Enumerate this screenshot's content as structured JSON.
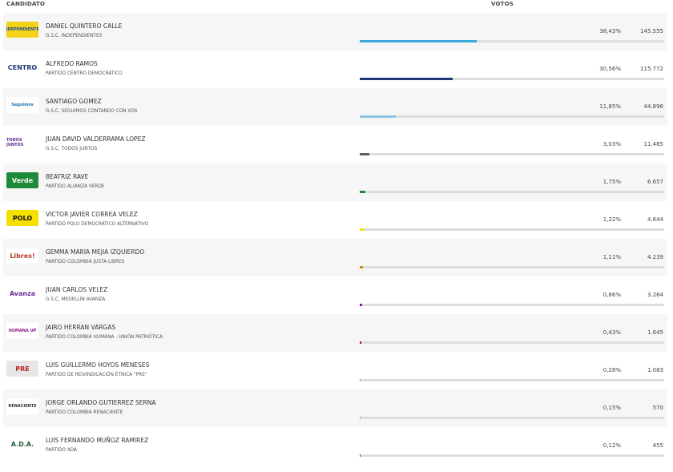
{
  "header": {
    "candidate": "CANDIDATO",
    "votes": "VOTOS"
  },
  "candidates": [
    {
      "name": "DANIEL QUINTERO CALLE",
      "party": "G.S.C. INDEPENDIENTES",
      "pct": "38,43%",
      "pct_value": 38.43,
      "votes": "145.555",
      "color": "#3aa8dc",
      "logo_text": "INDEPENDIENTES",
      "logo_bg": "#f3d21a",
      "logo_fg": "#1a4f9c",
      "logo_icon": "independientes-logo-icon"
    },
    {
      "name": "ALFREDO RAMOS",
      "party": "PARTIDO CENTRO DEMOCRÁTICO",
      "pct": "30,56%",
      "pct_value": 30.56,
      "votes": "115.772",
      "color": "#1e3a78",
      "logo_text": "CENTRO",
      "logo_bg": "#ffffff",
      "logo_fg": "#1e3a78",
      "logo_icon": "centro-democratico-logo-icon"
    },
    {
      "name": "SANTIAGO GOMEZ",
      "party": "G.S.C. SEGUIMOS CONTANDO CON VOS",
      "pct": "11,85%",
      "pct_value": 11.85,
      "votes": "44.896",
      "color": "#8cc3e3",
      "logo_text": "Seguimos",
      "logo_bg": "#ffffff",
      "logo_fg": "#1a6fb0",
      "logo_icon": "seguimos-logo-icon"
    },
    {
      "name": "JUAN DAVID VALDERRAMA LOPEZ",
      "party": "G.S.C. TODOS JUNTOS",
      "pct": "3,03%",
      "pct_value": 3.03,
      "votes": "11.485",
      "color": "#6b5a6b",
      "logo_text": "TODOS JUNTOS",
      "logo_bg": "#ffffff",
      "logo_fg": "#5b2a8a",
      "logo_icon": "todos-juntos-logo-icon"
    },
    {
      "name": "BEATRIZ RAVE",
      "party": "PARTIDO ALIANZA VERDE",
      "pct": "1,75%",
      "pct_value": 1.75,
      "votes": "6.657",
      "color": "#1f8a3a",
      "logo_text": "Verde",
      "logo_bg": "#1f8a3a",
      "logo_fg": "#ffffff",
      "logo_icon": "alianza-verde-logo-icon"
    },
    {
      "name": "VICTOR JAVIER CORREA VELEZ",
      "party": "PARTIDO POLO DEMOCRÁTICO ALTERNATIVO",
      "pct": "1,22%",
      "pct_value": 1.22,
      "votes": "4.644",
      "color": "#f2e200",
      "logo_text": "POLO",
      "logo_bg": "#f5e000",
      "logo_fg": "#111111",
      "logo_icon": "polo-logo-icon"
    },
    {
      "name": "GEMMA MARIA MEJIA IZQUIERDO",
      "party": "PARTIDO COLOMBIA JUSTA LIBRES",
      "pct": "1,11%",
      "pct_value": 1.11,
      "votes": "4.239",
      "color": "#d88a1e",
      "logo_text": "Libres!",
      "logo_bg": "#ffffff",
      "logo_fg": "#c0392b",
      "logo_icon": "colombia-justa-libres-logo-icon"
    },
    {
      "name": "JUAN CARLOS VELEZ",
      "party": "G.S.C. MEDELLÍN AVANZA",
      "pct": "0,86%",
      "pct_value": 0.86,
      "votes": "3.264",
      "color": "#7a1e8a",
      "logo_text": "Avanza",
      "logo_bg": "#ffffff",
      "logo_fg": "#6a2a9a",
      "logo_icon": "medellin-avanza-logo-icon"
    },
    {
      "name": "JAIRO HERRAN VARGAS",
      "party": "PARTIDO COLOMBIA HUMANA - UNIÓN PATRIÓTICA",
      "pct": "0,43%",
      "pct_value": 0.43,
      "votes": "1.645",
      "color": "#a0167a",
      "logo_text": "HUMANA UP",
      "logo_bg": "#ffffff",
      "logo_fg": "#8a1a8a",
      "logo_icon": "colombia-humana-logo-icon"
    },
    {
      "name": "LUIS GUILLERMO HOYOS MENESES",
      "party": "PARTIDO DE REIVINDICACIÓN ÉTNICA \"PRE\"",
      "pct": "0,28%",
      "pct_value": 0.28,
      "votes": "1.083",
      "color": "#999999",
      "logo_text": "PRE",
      "logo_bg": "#e6e6e6",
      "logo_fg": "#b22",
      "logo_icon": "pre-logo-icon"
    },
    {
      "name": "JORGE ORLANDO GUTIERREZ SERNA",
      "party": "PARTIDO COLOMBIA RENACIENTE",
      "pct": "0,15%",
      "pct_value": 0.15,
      "votes": "570",
      "color": "#c8b400",
      "logo_text": "RENACIENTE",
      "logo_bg": "#ffffff",
      "logo_fg": "#333333",
      "logo_icon": "colombia-renaciente-logo-icon"
    },
    {
      "name": "LUIS FERNANDO MUÑOZ RAMIREZ",
      "party": "PARTIDO ADA",
      "pct": "0,12%",
      "pct_value": 0.12,
      "votes": "455",
      "color": "#1f7a5a",
      "logo_text": "A.D.A.",
      "logo_bg": "#ffffff",
      "logo_fg": "#1f5a3a",
      "logo_icon": "ada-logo-icon"
    }
  ]
}
